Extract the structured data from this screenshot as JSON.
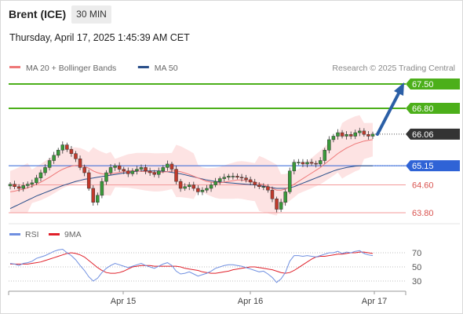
{
  "header": {
    "instrument": "Brent (ICE)",
    "interval": "30 MIN",
    "datetime": "Thursday, April 17, 2025 1:45:39 AM CET"
  },
  "colors": {
    "resistance": "#4caf1a",
    "support": "#f49a9a",
    "pivot": "#2f63d6",
    "ma50": "#2a4f8a",
    "ma20": "#ee7878",
    "band_fill": "#fde3e3",
    "arrow": "#2b5fa6",
    "current": "#333333",
    "rsi": "#6f8fe0",
    "rsi_ma": "#e0202a",
    "candle_up": "#3a9a3a",
    "candle_down": "#c0392b"
  },
  "chart_data": [
    {
      "type": "candlestick",
      "legend": [
        {
          "label": "MA 20 + Bollinger Bands",
          "color": "#ee7878"
        },
        {
          "label": "MA 50",
          "color": "#2a4f8a"
        }
      ],
      "credit": "Research © 2025 Trading Central",
      "x_ticks": [
        "Apr 15",
        "Apr 16",
        "Apr 17"
      ],
      "y_range": [
        63.5,
        67.8
      ],
      "levels": [
        {
          "label": "67.50",
          "value": 67.5,
          "kind": "resistance"
        },
        {
          "label": "66.80",
          "value": 66.8,
          "kind": "resistance"
        },
        {
          "label": "66.06",
          "value": 66.06,
          "kind": "current"
        },
        {
          "label": "65.15",
          "value": 65.15,
          "kind": "pivot"
        },
        {
          "label": "64.60",
          "value": 64.6,
          "kind": "support"
        },
        {
          "label": "63.80",
          "value": 63.8,
          "kind": "support"
        }
      ],
      "close": [
        64.62,
        64.55,
        64.5,
        64.58,
        64.62,
        64.66,
        64.8,
        64.95,
        65.1,
        65.3,
        65.45,
        65.6,
        65.75,
        65.62,
        65.5,
        65.35,
        65.1,
        64.95,
        64.5,
        64.1,
        64.3,
        64.7,
        64.95,
        65.1,
        65.15,
        65.05,
        65.0,
        64.92,
        65.0,
        65.05,
        65.1,
        65.0,
        64.95,
        64.9,
        65.0,
        65.1,
        65.2,
        65.05,
        64.7,
        64.5,
        64.55,
        64.6,
        64.5,
        64.4,
        64.45,
        64.5,
        64.6,
        64.7,
        64.78,
        64.82,
        64.85,
        64.85,
        64.82,
        64.8,
        64.75,
        64.68,
        64.6,
        64.55,
        64.55,
        64.45,
        64.2,
        63.9,
        64.1,
        64.4,
        65.0,
        65.25,
        65.25,
        65.2,
        65.25,
        65.22,
        65.2,
        65.3,
        65.6,
        65.9,
        66.0,
        66.1,
        66.0,
        66.05,
        66.0,
        66.1,
        66.15,
        66.05,
        66.0,
        66.06
      ],
      "ma20": [
        64.4,
        64.42,
        64.45,
        64.48,
        64.52,
        64.56,
        64.62,
        64.68,
        64.75,
        64.82,
        64.9,
        64.98,
        65.05,
        65.1,
        65.14,
        65.16,
        65.16,
        65.13,
        65.08,
        65.0,
        64.95,
        64.92,
        64.9,
        64.92,
        64.94,
        64.96,
        64.98,
        65.0,
        65.0,
        65.0,
        64.99,
        64.98,
        64.97,
        64.96,
        64.96,
        64.97,
        64.98,
        65.0,
        65.0,
        64.98,
        64.94,
        64.9,
        64.85,
        64.8,
        64.75,
        64.7,
        64.68,
        64.66,
        64.66,
        64.68,
        64.7,
        64.72,
        64.74,
        64.74,
        64.72,
        64.7,
        64.68,
        64.64,
        64.6,
        64.55,
        64.5,
        64.45,
        64.45,
        64.48,
        64.55,
        64.62,
        64.7,
        64.78,
        64.86,
        64.94,
        65.02,
        65.1,
        65.2,
        65.3,
        65.4,
        65.5,
        65.58,
        65.66,
        65.72,
        65.78,
        65.82,
        65.86,
        65.88,
        65.9
      ],
      "ma50": [
        63.92,
        63.98,
        64.04,
        64.1,
        64.16,
        64.22,
        64.28,
        64.33,
        64.38,
        64.43,
        64.48,
        64.53,
        64.58,
        64.62,
        64.66,
        64.7,
        64.73,
        64.76,
        64.78,
        64.8,
        64.82,
        64.84,
        64.86,
        64.88,
        64.9,
        64.92,
        64.94,
        64.96,
        64.98,
        64.99,
        65.0,
        65.0,
        65.0,
        65.0,
        65.0,
        64.99,
        64.98,
        64.96,
        64.94,
        64.92,
        64.89,
        64.86,
        64.83,
        64.8,
        64.77,
        64.74,
        64.72,
        64.7,
        64.68,
        64.67,
        64.66,
        64.65,
        64.64,
        64.63,
        64.62,
        64.61,
        64.6,
        64.58,
        64.56,
        64.54,
        64.52,
        64.5,
        64.5,
        64.5,
        64.52,
        64.55,
        64.6,
        64.65,
        64.7,
        64.75,
        64.8,
        64.85,
        64.9,
        64.95,
        65.0,
        65.04,
        65.07,
        65.1,
        65.12,
        65.14,
        65.15,
        65.15,
        65.15,
        65.15
      ]
    },
    {
      "type": "line",
      "legend": [
        {
          "label": "RSI",
          "color": "#6f8fe0"
        },
        {
          "label": "9MA",
          "color": "#e0202a"
        }
      ],
      "y_ticks": [
        "70",
        "50",
        "30"
      ],
      "y_range": [
        20,
        80
      ],
      "rsi": [
        55,
        54,
        52,
        55,
        56,
        58,
        62,
        64,
        66,
        69,
        72,
        74,
        75,
        70,
        66,
        60,
        52,
        45,
        36,
        30,
        34,
        42,
        48,
        52,
        55,
        53,
        51,
        49,
        51,
        53,
        55,
        52,
        50,
        48,
        51,
        54,
        56,
        52,
        44,
        40,
        41,
        43,
        40,
        37,
        39,
        41,
        44,
        48,
        50,
        52,
        53,
        53,
        52,
        51,
        49,
        47,
        45,
        43,
        44,
        40,
        35,
        28,
        33,
        42,
        58,
        66,
        66,
        65,
        66,
        65,
        64,
        66,
        68,
        70,
        70,
        72,
        69,
        71,
        70,
        72,
        73,
        69,
        67,
        66
      ],
      "ma9": [
        54,
        54,
        54,
        54,
        54,
        55,
        56,
        57,
        59,
        61,
        63,
        65,
        67,
        69,
        70,
        69,
        67,
        64,
        59,
        54,
        49,
        45,
        42,
        41,
        41,
        42,
        44,
        47,
        50,
        51,
        52,
        52,
        52,
        51,
        51,
        51,
        51,
        51,
        51,
        50,
        48,
        47,
        46,
        45,
        43,
        42,
        41,
        41,
        42,
        43,
        44,
        46,
        47,
        48,
        49,
        50,
        50,
        49,
        48,
        47,
        46,
        44,
        42,
        41,
        42,
        45,
        49,
        53,
        57,
        61,
        64,
        65,
        65,
        66,
        67,
        68,
        68,
        69,
        70,
        70,
        71,
        71,
        70,
        69
      ]
    }
  ]
}
